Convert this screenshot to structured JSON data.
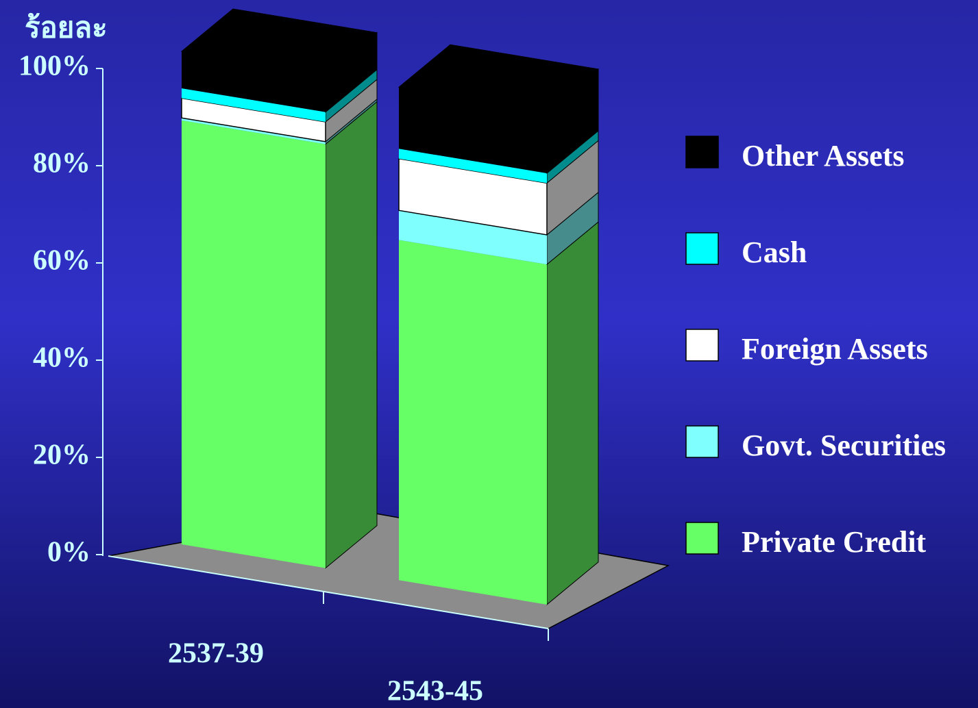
{
  "chart_data": {
    "type": "stacked-bar-3d",
    "axis_title": "ร้อยละ",
    "categories": [
      "2537-39",
      "2543-45"
    ],
    "series": [
      {
        "name": "Private Credit",
        "color": "#66ff66",
        "values": [
          86,
          69
        ]
      },
      {
        "name": "Govt. Securities",
        "color": "#80ffff",
        "values": [
          0.5,
          6
        ]
      },
      {
        "name": "Foreign Assets",
        "color": "#ffffff",
        "values": [
          4,
          10.5
        ]
      },
      {
        "name": "Cash",
        "color": "#00ffff",
        "values": [
          2,
          2
        ]
      },
      {
        "name": "Other Assets",
        "color": "#000000",
        "values": [
          7.5,
          12.5
        ]
      }
    ],
    "ylim": [
      0,
      100
    ],
    "yticks": [
      {
        "value": 0,
        "label": "0%"
      },
      {
        "value": 20,
        "label": "20%"
      },
      {
        "value": 40,
        "label": "40%"
      },
      {
        "value": 60,
        "label": "60%"
      },
      {
        "value": 80,
        "label": "80%"
      },
      {
        "value": 100,
        "label": "100%"
      }
    ]
  }
}
